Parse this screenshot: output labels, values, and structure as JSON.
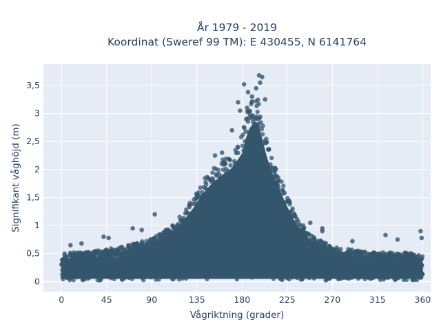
{
  "chart_data": {
    "type": "scatter",
    "title_line1": "År 1979 - 2019",
    "title_line2": "Koordinat (Sweref 99 TM): E 430455, N 6141764",
    "xlabel": "Vågriktning (grader)",
    "ylabel": "Signifikant våghöjd (m)",
    "xlim": [
      -18,
      368
    ],
    "ylim": [
      -0.18,
      3.88
    ],
    "x_ticks": [
      0,
      45,
      90,
      135,
      180,
      225,
      270,
      315,
      360
    ],
    "x_tick_labels": [
      "0",
      "45",
      "90",
      "135",
      "180",
      "225",
      "270",
      "315",
      "360"
    ],
    "y_ticks": [
      0,
      0.5,
      1,
      1.5,
      2,
      2.5,
      3,
      3.5
    ],
    "y_tick_labels": [
      "0",
      "0,5",
      "1",
      "1,5",
      "2",
      "2,5",
      "3",
      "3,5"
    ],
    "grid": true,
    "marker_color": "#34566d",
    "plot_background": "#e5ecf6",
    "envelope_direction_deg": [
      0,
      20,
      40,
      60,
      80,
      90,
      100,
      110,
      120,
      130,
      140,
      150,
      160,
      170,
      180,
      185,
      190,
      195,
      200,
      205,
      210,
      220,
      230,
      240,
      250,
      260,
      270,
      290,
      310,
      330,
      345,
      360
    ],
    "envelope_max_height_m": [
      0.5,
      0.5,
      0.55,
      0.6,
      0.7,
      0.75,
      0.85,
      1.0,
      1.2,
      1.45,
      1.75,
      2.0,
      2.15,
      2.3,
      2.6,
      3.0,
      3.2,
      3.3,
      2.9,
      2.5,
      2.2,
      1.75,
      1.3,
      1.0,
      0.8,
      0.7,
      0.6,
      0.55,
      0.5,
      0.5,
      0.5,
      0.45
    ],
    "outlier_points": [
      {
        "x": 197,
        "y": 3.68
      },
      {
        "x": 200,
        "y": 3.65
      },
      {
        "x": 198,
        "y": 3.55
      },
      {
        "x": 194,
        "y": 3.45
      },
      {
        "x": 182,
        "y": 3.52
      },
      {
        "x": 186,
        "y": 3.38
      },
      {
        "x": 190,
        "y": 3.3
      },
      {
        "x": 176,
        "y": 3.2
      },
      {
        "x": 185,
        "y": 3.1
      },
      {
        "x": 203,
        "y": 3.25
      },
      {
        "x": 178,
        "y": 3.05
      },
      {
        "x": 170,
        "y": 2.7
      },
      {
        "x": 160,
        "y": 2.3
      },
      {
        "x": 153,
        "y": 2.25
      },
      {
        "x": 93,
        "y": 1.2
      },
      {
        "x": 71,
        "y": 0.95
      },
      {
        "x": 80,
        "y": 0.92
      },
      {
        "x": 260,
        "y": 0.9
      },
      {
        "x": 358,
        "y": 0.9
      },
      {
        "x": 323,
        "y": 0.83
      },
      {
        "x": 359,
        "y": 0.78
      },
      {
        "x": 42,
        "y": 0.8
      },
      {
        "x": 47,
        "y": 0.78
      },
      {
        "x": 20,
        "y": 0.68
      },
      {
        "x": 335,
        "y": 0.75
      },
      {
        "x": 290,
        "y": 0.72
      },
      {
        "x": 9,
        "y": 0.65
      },
      {
        "x": 260,
        "y": 0.95
      },
      {
        "x": 248,
        "y": 1.05
      }
    ]
  }
}
